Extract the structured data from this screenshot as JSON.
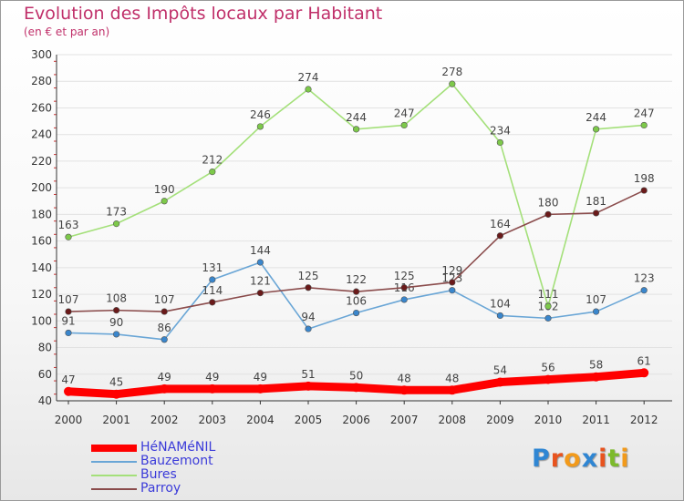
{
  "header": {
    "title": "Evolution des Impôts locaux par Habitant",
    "subtitle": "(en € et par an)"
  },
  "colors": {
    "title": "#c0306a",
    "legend_text": "#3b3bd9"
  },
  "logo": {
    "text": "Proxiti",
    "letters": [
      "P",
      "r",
      "o",
      "x",
      "i",
      "t",
      "i"
    ],
    "letter_colors": [
      "#2f86d3",
      "#e8531e",
      "#f29a1b",
      "#2f86d3",
      "#e8531e",
      "#7cba2c",
      "#f29a1b"
    ]
  },
  "chart_data": {
    "type": "line",
    "title": "Evolution des Impôts locaux par Habitant",
    "subtitle": "(en € et par an)",
    "xlabel": "",
    "ylabel": "",
    "ylim": [
      40,
      300
    ],
    "y_ticks": [
      40,
      60,
      80,
      100,
      120,
      140,
      160,
      180,
      200,
      220,
      240,
      260,
      280,
      300
    ],
    "grid": "horizontal",
    "legend_position": "bottom-left",
    "categories": [
      "2000",
      "2001",
      "2002",
      "2003",
      "2004",
      "2005",
      "2006",
      "2007",
      "2008",
      "2009",
      "2010",
      "2011",
      "2012"
    ],
    "series": [
      {
        "name": "HéNAMéNIL",
        "values": [
          47,
          45,
          49,
          49,
          49,
          51,
          50,
          48,
          48,
          54,
          56,
          58,
          61
        ],
        "color": "#ff0000",
        "marker_color": "#ff0000",
        "emphasis": true
      },
      {
        "name": "Bauzemont",
        "values": [
          91,
          90,
          86,
          131,
          144,
          94,
          106,
          116,
          123,
          104,
          102,
          107,
          123
        ],
        "color": "#6aa6d6",
        "marker_color": "#3a86cc",
        "emphasis": false
      },
      {
        "name": "Bures",
        "values": [
          163,
          173,
          190,
          212,
          246,
          274,
          244,
          247,
          278,
          234,
          111,
          244,
          247
        ],
        "color": "#a4e07a",
        "marker_color": "#7dc94a",
        "emphasis": false
      },
      {
        "name": "Parroy",
        "values": [
          107,
          108,
          107,
          114,
          121,
          125,
          122,
          125,
          129,
          164,
          180,
          181,
          198
        ],
        "color": "#8a4b4b",
        "marker_color": "#6a1a1a",
        "emphasis": false
      }
    ]
  }
}
